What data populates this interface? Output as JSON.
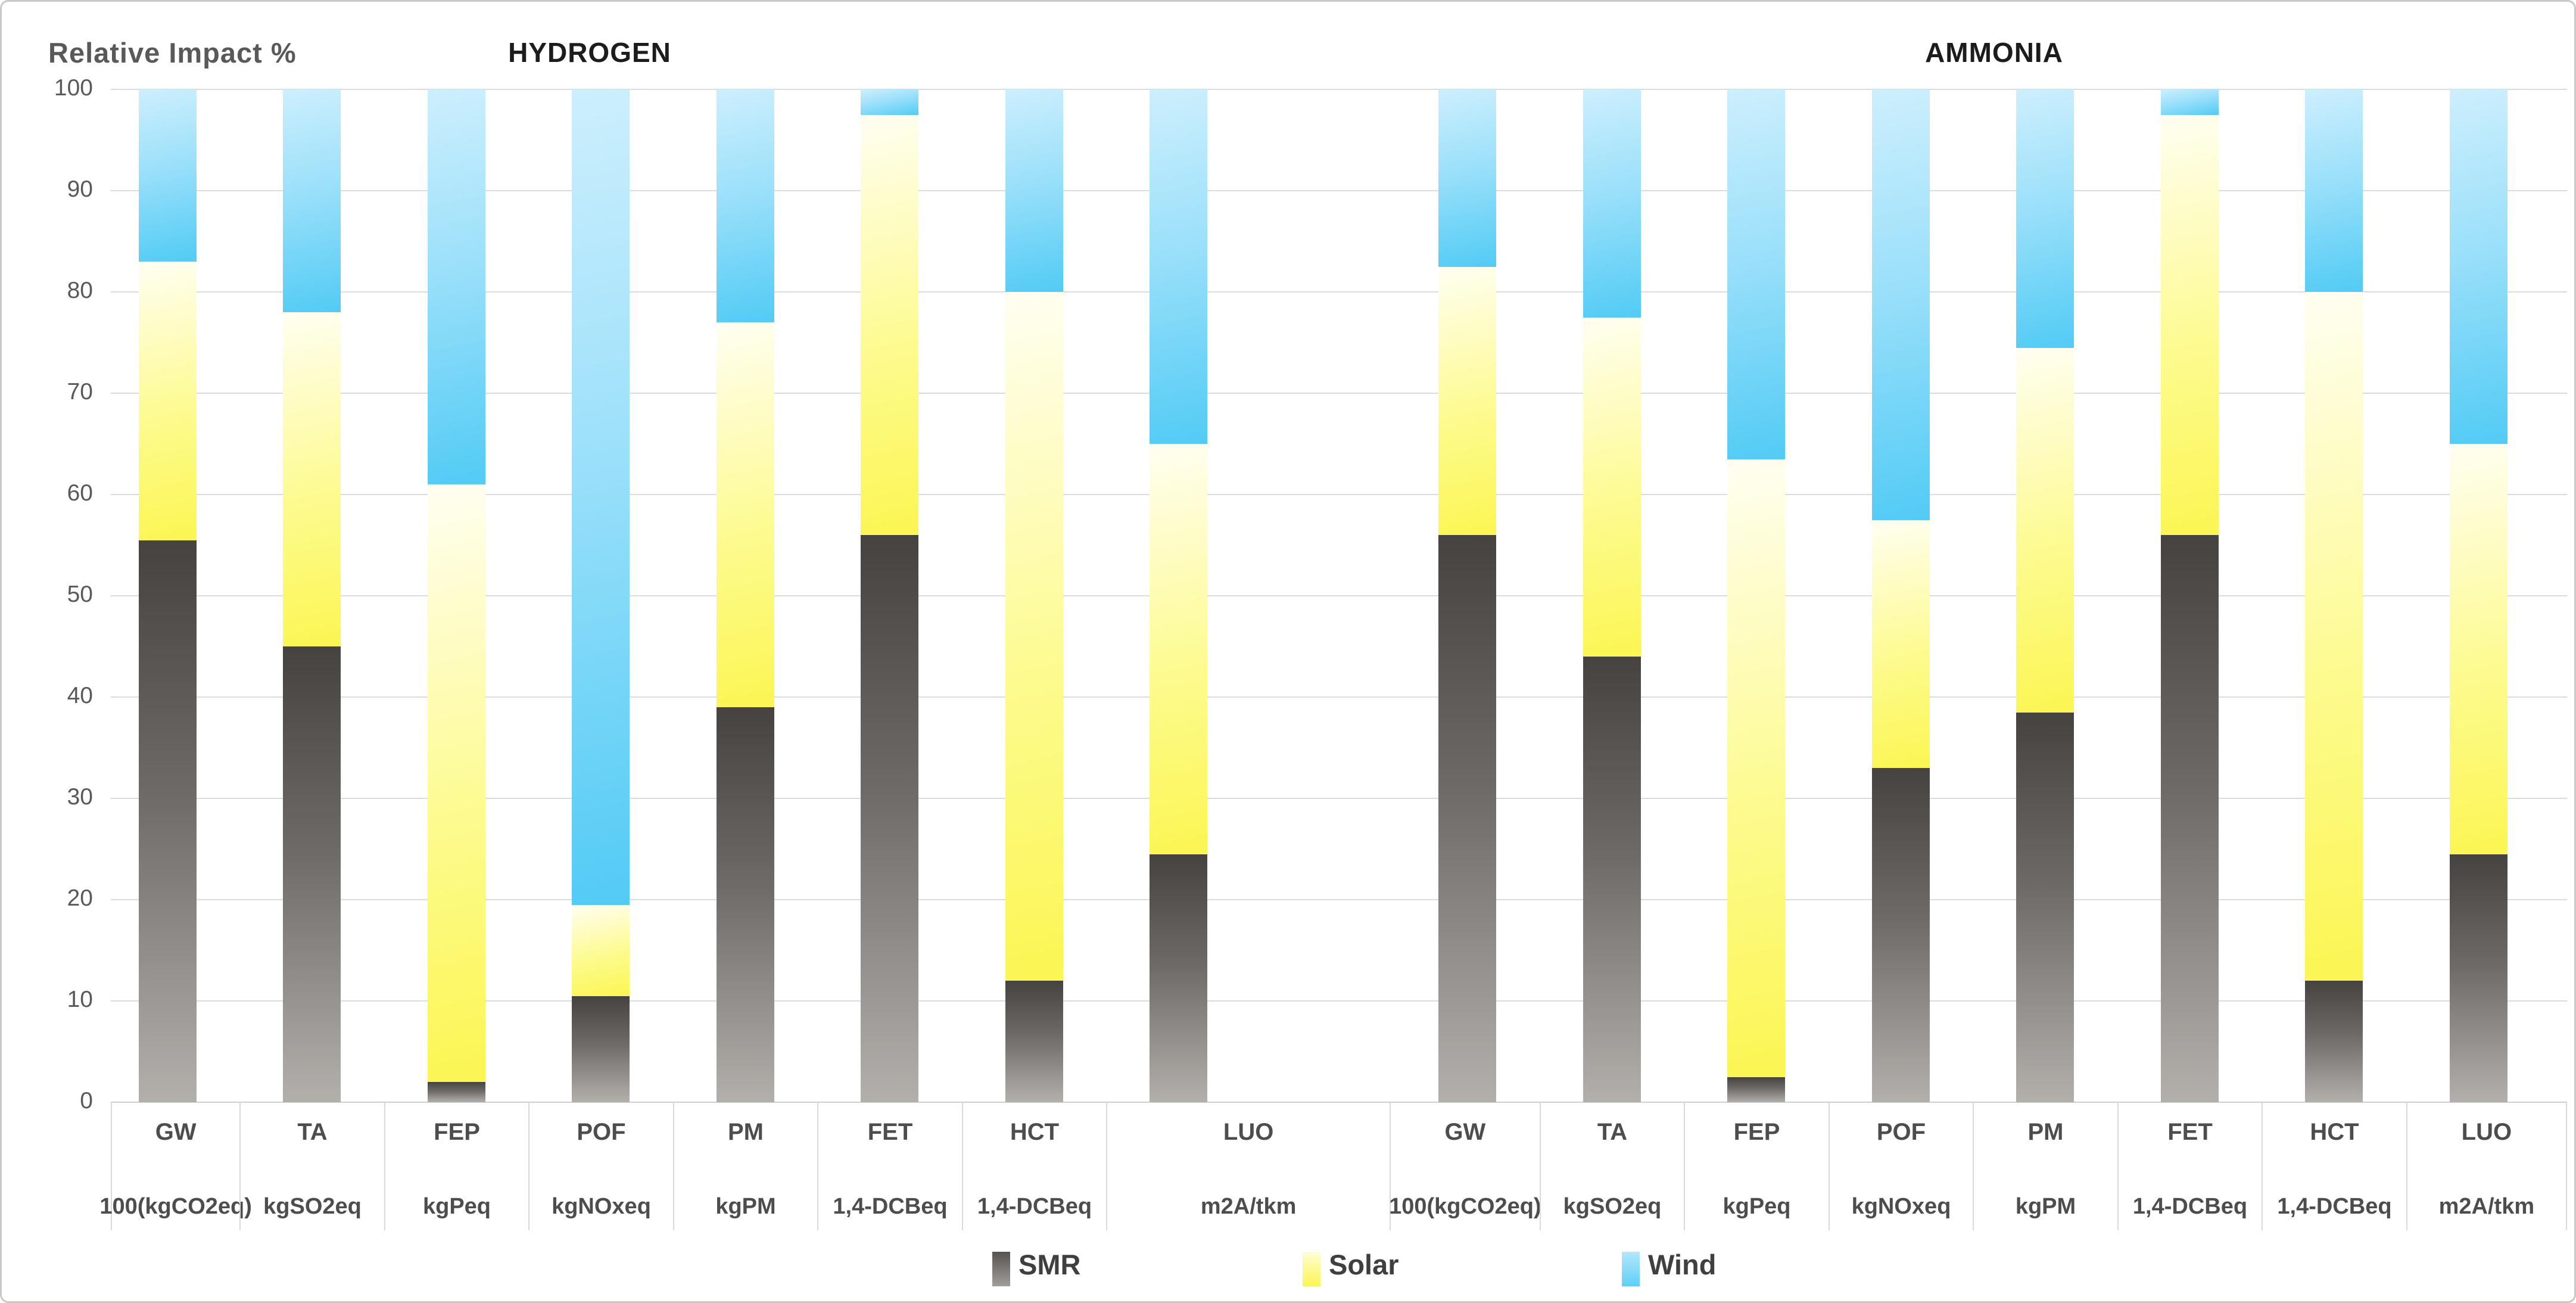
{
  "figure": {
    "axis_title": "Relative Impact  %",
    "group_labels": [
      "HYDROGEN",
      "AMMONIA"
    ]
  },
  "y_axis": {
    "ticks": [
      0,
      10,
      20,
      30,
      40,
      50,
      60,
      70,
      80,
      90,
      100
    ]
  },
  "legend": [
    {
      "label": "SMR",
      "type": "smr",
      "color": "#6e6a67"
    },
    {
      "label": "Solar",
      "type": "solar",
      "color": "#fbf652"
    },
    {
      "label": "Wind",
      "type": "wind",
      "color": "#52cbf5"
    }
  ],
  "colors": {
    "smr_top": "#454240",
    "smr_bottom": "#b3b0ac",
    "solar_top": "#fffef2",
    "solar_bottom": "#fbf652",
    "wind_top": "#cdeffd",
    "wind_bottom": "#52cbf5",
    "gridline": "#dcdcdc",
    "axis_text": "#595959"
  },
  "chart_data": {
    "type": "bar",
    "stacked": true,
    "title": "Relative Impact %",
    "ylabel": "Relative Impact %",
    "ylim": [
      0,
      100
    ],
    "grid": true,
    "legend_position": "bottom",
    "series_names": [
      "SMR",
      "Solar",
      "Wind"
    ],
    "groups": [
      {
        "label": "HYDROGEN",
        "categories": [
          {
            "code": "GW",
            "unit": "100(kgCO2eq)"
          },
          {
            "code": "TA",
            "unit": "kgSO2eq"
          },
          {
            "code": "FEP",
            "unit": "kgPeq"
          },
          {
            "code": "POF",
            "unit": "kgNOxeq"
          },
          {
            "code": "PM",
            "unit": "kgPM"
          },
          {
            "code": "FET",
            "unit": "1,4-DCBeq"
          },
          {
            "code": "HCT",
            "unit": "1,4-DCBeq"
          },
          {
            "code": "LUO",
            "unit": "m2A/tkm"
          }
        ],
        "series": [
          {
            "name": "SMR",
            "values": [
              55.5,
              45.0,
              2.0,
              10.5,
              39.0,
              56.0,
              12.0,
              24.5
            ]
          },
          {
            "name": "Solar",
            "values": [
              27.5,
              33.0,
              59.0,
              9.0,
              38.0,
              41.5,
              68.0,
              40.5
            ]
          },
          {
            "name": "Wind",
            "values": [
              17.0,
              22.0,
              39.0,
              80.5,
              23.0,
              2.5,
              20.0,
              35.0
            ]
          }
        ]
      },
      {
        "label": "AMMONIA",
        "categories": [
          {
            "code": "GW",
            "unit": "100(kgCO2eq)"
          },
          {
            "code": "TA",
            "unit": "kgSO2eq"
          },
          {
            "code": "FEP",
            "unit": "kgPeq"
          },
          {
            "code": "POF",
            "unit": "kgNOxeq"
          },
          {
            "code": "PM",
            "unit": "kgPM"
          },
          {
            "code": "FET",
            "unit": "1,4-DCBeq"
          },
          {
            "code": "HCT",
            "unit": "1,4-DCBeq"
          },
          {
            "code": "LUO",
            "unit": "m2A/tkm"
          }
        ],
        "series": [
          {
            "name": "SMR",
            "values": [
              56.0,
              44.0,
              2.5,
              33.0,
              38.5,
              56.0,
              12.0,
              24.5
            ]
          },
          {
            "name": "Solar",
            "values": [
              26.5,
              33.5,
              61.0,
              24.5,
              36.0,
              41.5,
              68.0,
              40.5
            ]
          },
          {
            "name": "Wind",
            "values": [
              17.5,
              22.5,
              36.5,
              42.5,
              25.5,
              2.5,
              20.0,
              35.0
            ]
          }
        ]
      }
    ]
  }
}
